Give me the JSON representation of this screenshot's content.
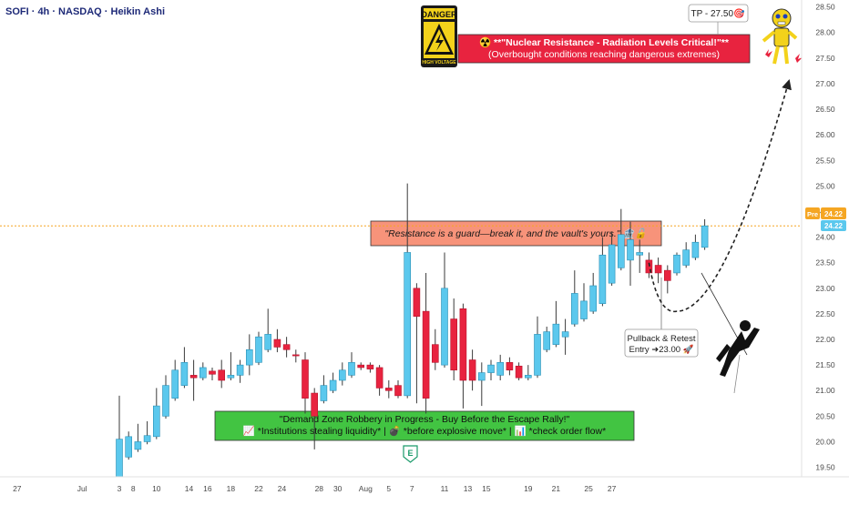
{
  "header": {
    "title": "SOFI · 4h · NASDAQ · Heikin Ashi"
  },
  "annotations": {
    "danger_sign": {
      "top": "DANGER",
      "bottom": "HIGH VOLTAGE"
    },
    "nuclear_box": {
      "line1": "☢️ **\"Nuclear Resistance - Radiation Levels Critical!\"**",
      "line2": "(Overbought conditions reaching dangerous extremes)"
    },
    "tp_label": "TP - 27.50🎯",
    "resistance_box": "\"Resistance is a guard—break it, and the vault's yours.\" 🏦🔓",
    "demand_box": {
      "line1": "\"Demand Zone Robbery in Progress - Buy Before the Escape Rally!\"",
      "line2": "📈 *Institutions stealing liquidity* | 💣 *before explosive move* | 📊 *check order flow*"
    },
    "pullback_box": {
      "line1": "Pullback & Retest",
      "line2": "Entry ➜23.00 🚀"
    },
    "earnings_marker": "E",
    "pre_tag": "Pre",
    "price_tag": "24.22",
    "price_tag_secondary": "24.22"
  },
  "colors": {
    "bull": "#5bc8ed",
    "bear": "#e8233f",
    "wick": "#3a3a3a",
    "axis_text": "#4a4a4a",
    "price_line": "#f5a623",
    "nuclear_fill": "#e8233f",
    "resistance_fill": "#f7937a",
    "demand_fill": "#42c442",
    "earnings_green": "#1a9a6a"
  },
  "chart_data": {
    "type": "candlestick",
    "title": "SOFI · 4h · NASDAQ · Heikin Ashi",
    "y_axis": {
      "ticks": [
        19.5,
        20.0,
        20.5,
        21.0,
        21.5,
        22.0,
        22.5,
        23.0,
        23.5,
        24.0,
        24.5,
        25.0,
        25.5,
        26.0,
        26.5,
        27.0,
        27.5,
        28.0,
        28.5
      ],
      "tick_labels": [
        "19.50",
        "20.00",
        "20.50",
        "21.00",
        "21.50",
        "22.00",
        "22.50",
        "23.00",
        "23.50",
        "24.00",
        "24.50",
        "25.00",
        "25.50",
        "26.00",
        "26.50",
        "27.00",
        "27.50",
        "28.00",
        "28.50"
      ],
      "range": [
        19.35,
        28.6
      ]
    },
    "x_axis": {
      "tick_labels": [
        "27",
        "Jul",
        "3",
        "8",
        "10",
        "14",
        "16",
        "18",
        "22",
        "24",
        "28",
        "30",
        "Aug",
        "5",
        "7",
        "11",
        "13",
        "15",
        "19",
        "21",
        "25",
        "27"
      ],
      "tick_positions_bar_index": [
        -11,
        -4,
        0,
        1.5,
        4,
        7.5,
        9.5,
        12,
        15,
        17.5,
        21.5,
        23.5,
        26.5,
        29,
        31.5,
        35,
        37.5,
        39.5,
        44,
        47,
        50.5,
        53
      ]
    },
    "last_price": 24.22,
    "target_price": 27.5,
    "entry_price": 23.0,
    "candles": [
      {
        "o": 19.3,
        "h": 20.9,
        "l": 19.3,
        "c": 20.05
      },
      {
        "o": 19.7,
        "h": 20.2,
        "l": 19.65,
        "c": 20.1
      },
      {
        "o": 19.85,
        "h": 20.35,
        "l": 19.8,
        "c": 20.0
      },
      {
        "o": 20.0,
        "h": 20.4,
        "l": 19.95,
        "c": 20.12
      },
      {
        "o": 20.1,
        "h": 21.05,
        "l": 20.05,
        "c": 20.7
      },
      {
        "o": 20.5,
        "h": 21.3,
        "l": 20.45,
        "c": 21.1
      },
      {
        "o": 20.85,
        "h": 21.6,
        "l": 20.8,
        "c": 21.4
      },
      {
        "o": 21.1,
        "h": 21.85,
        "l": 21.05,
        "c": 21.55
      },
      {
        "o": 21.3,
        "h": 21.6,
        "l": 20.8,
        "c": 21.25
      },
      {
        "o": 21.25,
        "h": 21.55,
        "l": 21.2,
        "c": 21.45
      },
      {
        "o": 21.38,
        "h": 21.45,
        "l": 21.2,
        "c": 21.32
      },
      {
        "o": 21.4,
        "h": 21.6,
        "l": 21.05,
        "c": 21.2
      },
      {
        "o": 21.25,
        "h": 21.75,
        "l": 21.2,
        "c": 21.3
      },
      {
        "o": 21.3,
        "h": 21.6,
        "l": 21.15,
        "c": 21.5
      },
      {
        "o": 21.5,
        "h": 22.1,
        "l": 21.3,
        "c": 21.8
      },
      {
        "o": 21.55,
        "h": 22.15,
        "l": 21.5,
        "c": 22.05
      },
      {
        "o": 21.8,
        "h": 22.6,
        "l": 21.75,
        "c": 22.1
      },
      {
        "o": 22.0,
        "h": 22.2,
        "l": 21.75,
        "c": 21.85
      },
      {
        "o": 21.9,
        "h": 22.05,
        "l": 21.65,
        "c": 21.8
      },
      {
        "o": 21.7,
        "h": 21.8,
        "l": 21.55,
        "c": 21.68
      },
      {
        "o": 21.6,
        "h": 21.75,
        "l": 20.55,
        "c": 20.85
      },
      {
        "o": 20.95,
        "h": 21.05,
        "l": 19.85,
        "c": 20.5
      },
      {
        "o": 20.8,
        "h": 21.3,
        "l": 20.75,
        "c": 21.1
      },
      {
        "o": 21.0,
        "h": 21.35,
        "l": 20.95,
        "c": 21.2
      },
      {
        "o": 21.2,
        "h": 21.55,
        "l": 21.1,
        "c": 21.4
      },
      {
        "o": 21.3,
        "h": 21.75,
        "l": 21.25,
        "c": 21.55
      },
      {
        "o": 21.5,
        "h": 21.55,
        "l": 21.4,
        "c": 21.45
      },
      {
        "o": 21.5,
        "h": 21.55,
        "l": 21.35,
        "c": 21.42
      },
      {
        "o": 21.45,
        "h": 21.5,
        "l": 20.9,
        "c": 21.05
      },
      {
        "o": 21.05,
        "h": 21.2,
        "l": 20.85,
        "c": 21.0
      },
      {
        "o": 21.1,
        "h": 21.2,
        "l": 20.85,
        "c": 20.9
      },
      {
        "o": 20.9,
        "h": 25.05,
        "l": 20.85,
        "c": 23.7
      },
      {
        "o": 23.0,
        "h": 23.1,
        "l": 20.75,
        "c": 22.45
      },
      {
        "o": 22.55,
        "h": 23.3,
        "l": 20.55,
        "c": 20.85
      },
      {
        "o": 21.9,
        "h": 22.2,
        "l": 21.4,
        "c": 21.55
      },
      {
        "o": 21.5,
        "h": 23.7,
        "l": 21.45,
        "c": 23.0
      },
      {
        "o": 22.4,
        "h": 22.8,
        "l": 21.2,
        "c": 21.4
      },
      {
        "o": 22.6,
        "h": 22.7,
        "l": 20.65,
        "c": 21.2
      },
      {
        "o": 21.6,
        "h": 21.8,
        "l": 21.0,
        "c": 21.2
      },
      {
        "o": 21.2,
        "h": 21.55,
        "l": 20.7,
        "c": 21.35
      },
      {
        "o": 21.35,
        "h": 21.6,
        "l": 21.2,
        "c": 21.5
      },
      {
        "o": 21.3,
        "h": 21.7,
        "l": 21.2,
        "c": 21.55
      },
      {
        "o": 21.55,
        "h": 21.65,
        "l": 21.3,
        "c": 21.4
      },
      {
        "o": 21.48,
        "h": 21.55,
        "l": 21.2,
        "c": 21.25
      },
      {
        "o": 21.25,
        "h": 21.5,
        "l": 21.2,
        "c": 21.3
      },
      {
        "o": 21.3,
        "h": 22.45,
        "l": 21.25,
        "c": 22.1
      },
      {
        "o": 21.8,
        "h": 22.25,
        "l": 21.75,
        "c": 22.15
      },
      {
        "o": 21.9,
        "h": 22.75,
        "l": 21.85,
        "c": 22.3
      },
      {
        "o": 22.05,
        "h": 22.4,
        "l": 21.7,
        "c": 22.15
      },
      {
        "o": 22.3,
        "h": 23.35,
        "l": 22.25,
        "c": 22.9
      },
      {
        "o": 22.4,
        "h": 23.1,
        "l": 22.35,
        "c": 22.75
      },
      {
        "o": 22.55,
        "h": 23.3,
        "l": 22.5,
        "c": 23.05
      },
      {
        "o": 22.7,
        "h": 24.0,
        "l": 22.65,
        "c": 23.65
      },
      {
        "o": 23.1,
        "h": 24.1,
        "l": 23.05,
        "c": 23.85
      },
      {
        "o": 23.4,
        "h": 24.55,
        "l": 23.35,
        "c": 24.05
      },
      {
        "o": 23.55,
        "h": 24.3,
        "l": 23.05,
        "c": 23.95
      },
      {
        "o": 23.65,
        "h": 23.95,
        "l": 23.3,
        "c": 23.7
      },
      {
        "o": 23.55,
        "h": 23.7,
        "l": 23.2,
        "c": 23.3
      },
      {
        "o": 23.45,
        "h": 23.6,
        "l": 23.1,
        "c": 23.3
      },
      {
        "o": 23.35,
        "h": 23.45,
        "l": 22.9,
        "c": 23.15
      },
      {
        "o": 23.3,
        "h": 23.7,
        "l": 23.25,
        "c": 23.65
      },
      {
        "o": 23.45,
        "h": 23.9,
        "l": 23.4,
        "c": 23.75
      },
      {
        "o": 23.6,
        "h": 24.05,
        "l": 23.55,
        "c": 23.9
      },
      {
        "o": 23.8,
        "h": 24.35,
        "l": 23.75,
        "c": 24.22
      }
    ]
  }
}
